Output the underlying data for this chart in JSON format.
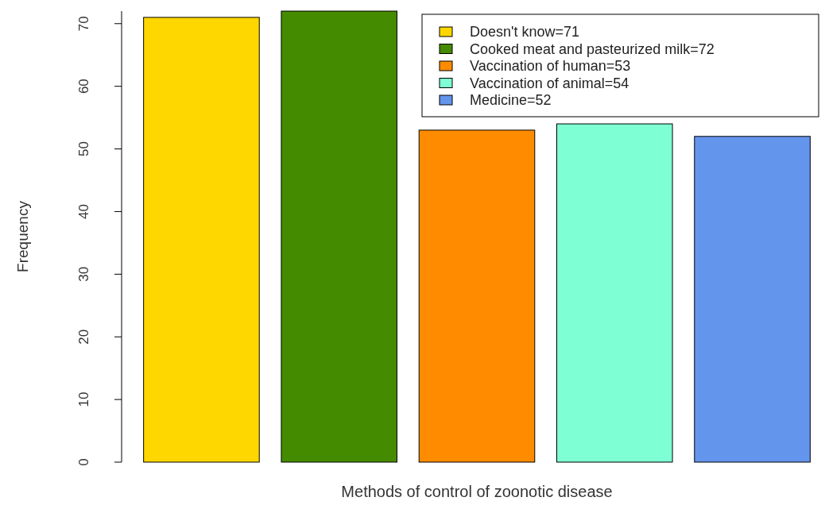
{
  "chart_data": {
    "type": "bar",
    "xlabel": "Methods of control of zoonotic disease",
    "ylabel": "Frequency",
    "categories": [
      null,
      null,
      null,
      null,
      null
    ],
    "series": [
      {
        "name": "Doesn't know=71",
        "color": "#ffd700",
        "values": [
          71,
          null,
          null,
          null,
          null
        ]
      },
      {
        "name": "Cooked meat and pasteurized milk=72",
        "color": "#458b00",
        "values": [
          null,
          72,
          null,
          null,
          null
        ]
      },
      {
        "name": "Vaccination of human=53",
        "color": "#ff8c00",
        "values": [
          null,
          null,
          53,
          null,
          null
        ]
      },
      {
        "name": "Vaccination of animal=54",
        "color": "#7fffd4",
        "values": [
          null,
          null,
          null,
          54,
          null
        ]
      },
      {
        "name": "Medicine=52",
        "color": "#6495ed",
        "values": [
          null,
          null,
          null,
          null,
          52
        ]
      }
    ],
    "stacked": true,
    "ylim": [
      0,
      72
    ],
    "yticks": [
      0,
      10,
      20,
      30,
      40,
      50,
      60,
      70
    ],
    "grid": false,
    "legend": "top right"
  }
}
